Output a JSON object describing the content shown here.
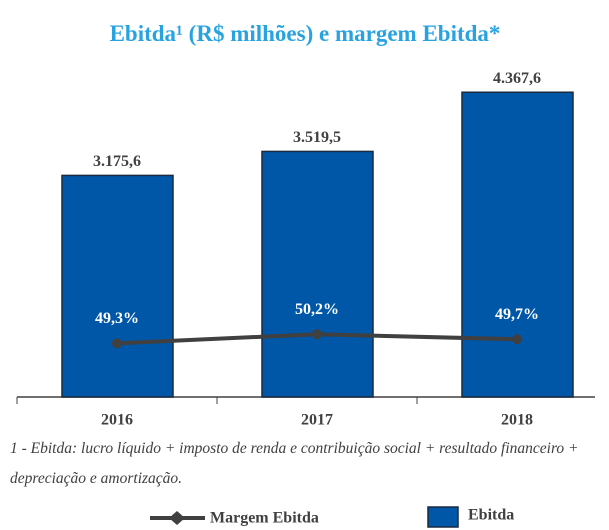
{
  "chart_data": {
    "type": "bar",
    "title": "Ebitda¹ (R$ milhões) e margem Ebitda*",
    "note": "1 - Ebitda: lucro líquido + imposto de renda e contribuição social + resultado financeiro + depreciação e amortização.",
    "categories": [
      "2016",
      "2017",
      "2018"
    ],
    "series": [
      {
        "name": "Ebitda",
        "type": "bar",
        "color": "#0057a8",
        "values": [
          3175.6,
          3519.5,
          4367.6
        ],
        "value_labels": [
          "3.175,6",
          "3.519,5",
          "4.367,6"
        ]
      },
      {
        "name": "Margem Ebitda",
        "type": "line",
        "axis": "y2",
        "color": "#404040",
        "values": [
          49.3,
          50.2,
          49.7
        ],
        "value_labels": [
          "49,3%",
          "50,2%",
          "49,7%"
        ]
      }
    ],
    "ylim": [
      0,
      4500
    ],
    "y2lim": [
      44,
      75
    ]
  }
}
